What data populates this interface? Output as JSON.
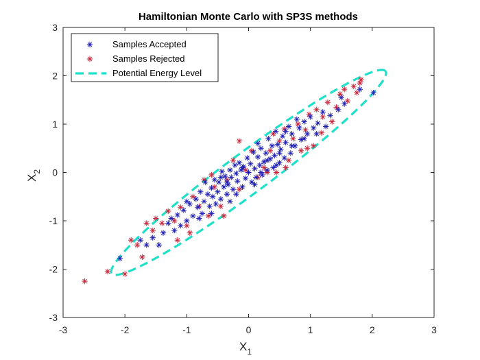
{
  "chart_data": {
    "type": "scatter",
    "title": "Hamiltonian Monte Carlo with SP3S methods",
    "xlabel": "X",
    "xlabel_sub": "1",
    "ylabel": "X",
    "ylabel_sub": "2",
    "xlim": [
      -3,
      3
    ],
    "ylim": [
      -3,
      3
    ],
    "xticks": [
      -3,
      -2,
      -1,
      0,
      1,
      2,
      3
    ],
    "yticks": [
      -3,
      -2,
      -1,
      0,
      1,
      2,
      3
    ],
    "grid": false,
    "legend_position": "top-left",
    "series": [
      {
        "name": "Samples Accepted",
        "marker": "asterisk",
        "color": "#1f1fb4",
        "points": [
          [
            2.02,
            1.65
          ],
          [
            1.8,
            1.72
          ],
          [
            1.55,
            1.42
          ],
          [
            1.5,
            1.55
          ],
          [
            1.45,
            1.3
          ],
          [
            1.32,
            1.18
          ],
          [
            1.25,
            0.95
          ],
          [
            1.2,
            1.25
          ],
          [
            1.12,
            1.02
          ],
          [
            1.05,
            0.92
          ],
          [
            1.0,
            1.15
          ],
          [
            0.95,
            0.8
          ],
          [
            0.9,
            1.05
          ],
          [
            0.85,
            0.68
          ],
          [
            0.82,
            0.92
          ],
          [
            0.78,
            1.1
          ],
          [
            0.75,
            0.55
          ],
          [
            0.7,
            0.8
          ],
          [
            0.68,
            0.4
          ],
          [
            0.65,
            0.95
          ],
          [
            0.6,
            0.62
          ],
          [
            0.58,
            0.3
          ],
          [
            0.55,
            0.75
          ],
          [
            0.52,
            0.48
          ],
          [
            0.5,
            0.2
          ],
          [
            0.47,
            0.58
          ],
          [
            0.44,
            0.85
          ],
          [
            0.42,
            0.35
          ],
          [
            0.4,
            0.1
          ],
          [
            0.38,
            0.55
          ],
          [
            0.35,
            0.28
          ],
          [
            0.32,
            0.7
          ],
          [
            0.3,
            0.05
          ],
          [
            0.28,
            0.4
          ],
          [
            0.25,
            0.22
          ],
          [
            0.22,
            -0.05
          ],
          [
            0.2,
            0.5
          ],
          [
            0.18,
            0.15
          ],
          [
            0.15,
            0.32
          ],
          [
            0.12,
            -0.1
          ],
          [
            0.1,
            0.08
          ],
          [
            0.08,
            0.42
          ],
          [
            0.05,
            -0.2
          ],
          [
            0.03,
            0.18
          ],
          [
            0.0,
            0.0
          ],
          [
            -0.02,
            0.3
          ],
          [
            -0.05,
            -0.12
          ],
          [
            -0.08,
            0.12
          ],
          [
            -0.1,
            -0.3
          ],
          [
            -0.12,
            0.05
          ],
          [
            -0.15,
            0.2
          ],
          [
            -0.18,
            -0.18
          ],
          [
            -0.2,
            -0.02
          ],
          [
            -0.22,
            0.15
          ],
          [
            -0.25,
            -0.35
          ],
          [
            -0.28,
            -0.1
          ],
          [
            -0.3,
            0.05
          ],
          [
            -0.33,
            -0.25
          ],
          [
            -0.35,
            -0.45
          ],
          [
            -0.38,
            -0.08
          ],
          [
            -0.4,
            -0.3
          ],
          [
            -0.43,
            0.02
          ],
          [
            -0.45,
            -0.55
          ],
          [
            -0.48,
            -0.2
          ],
          [
            -0.5,
            -0.4
          ],
          [
            -0.53,
            -0.65
          ],
          [
            -0.55,
            -0.15
          ],
          [
            -0.58,
            -0.5
          ],
          [
            -0.6,
            -0.32
          ],
          [
            -0.63,
            -0.7
          ],
          [
            -0.66,
            -0.45
          ],
          [
            -0.7,
            -0.2
          ],
          [
            -0.72,
            -0.6
          ],
          [
            -0.75,
            -0.85
          ],
          [
            -0.78,
            -0.4
          ],
          [
            -0.82,
            -0.72
          ],
          [
            -0.85,
            -0.55
          ],
          [
            -0.9,
            -0.9
          ],
          [
            -0.95,
            -0.65
          ],
          [
            -1.0,
            -1.0
          ],
          [
            -1.05,
            -0.78
          ],
          [
            -1.1,
            -1.1
          ],
          [
            -1.15,
            -0.88
          ],
          [
            -1.2,
            -1.2
          ],
          [
            -1.25,
            -0.95
          ],
          [
            -1.3,
            -1.05
          ],
          [
            -1.38,
            -1.25
          ],
          [
            -1.45,
            -1.5
          ],
          [
            -1.55,
            -1.35
          ],
          [
            -1.65,
            -1.5
          ],
          [
            -1.75,
            -1.4
          ],
          [
            -2.08,
            -1.78
          ],
          [
            0.2,
            0.0
          ],
          [
            0.1,
            -0.25
          ],
          [
            -0.1,
            0.1
          ],
          [
            -0.3,
            -0.6
          ],
          [
            0.3,
            0.25
          ],
          [
            0.45,
            0.15
          ],
          [
            -0.2,
            -0.45
          ],
          [
            0.6,
            0.85
          ],
          [
            -0.6,
            -0.85
          ],
          [
            0.7,
            0.55
          ],
          [
            -0.45,
            -0.1
          ],
          [
            0.15,
            0.6
          ],
          [
            -0.35,
            -0.2
          ],
          [
            0.9,
            0.7
          ],
          [
            -0.8,
            -0.95
          ],
          [
            1.1,
            0.8
          ],
          [
            -1.0,
            -0.6
          ],
          [
            0.5,
            0.4
          ]
        ]
      },
      {
        "name": "Samples Rejected",
        "marker": "asterisk",
        "color": "#c8283c",
        "points": [
          [
            1.82,
            1.92
          ],
          [
            1.8,
            1.85
          ],
          [
            1.75,
            1.65
          ],
          [
            1.7,
            1.78
          ],
          [
            1.6,
            1.48
          ],
          [
            1.48,
            1.62
          ],
          [
            1.42,
            1.35
          ],
          [
            1.35,
            1.05
          ],
          [
            1.28,
            1.45
          ],
          [
            1.18,
            0.82
          ],
          [
            1.1,
            1.3
          ],
          [
            1.05,
            0.55
          ],
          [
            0.98,
            1.2
          ],
          [
            0.92,
            0.88
          ],
          [
            0.85,
            0.45
          ],
          [
            0.8,
            1.0
          ],
          [
            0.72,
            0.7
          ],
          [
            0.65,
            0.25
          ],
          [
            0.58,
            0.9
          ],
          [
            0.5,
            0.65
          ],
          [
            0.45,
            0.0
          ],
          [
            0.35,
            0.45
          ],
          [
            0.25,
            0.1
          ],
          [
            0.15,
            -0.1
          ],
          [
            0.05,
            0.45
          ],
          [
            -0.05,
            0.05
          ],
          [
            -0.15,
            -0.35
          ],
          [
            -0.15,
            0.65
          ],
          [
            -0.25,
            0.25
          ],
          [
            -0.35,
            -0.15
          ],
          [
            -0.45,
            -0.7
          ],
          [
            -0.55,
            -0.3
          ],
          [
            -0.65,
            -0.9
          ],
          [
            -0.72,
            -0.15
          ],
          [
            -0.8,
            -0.7
          ],
          [
            -0.9,
            -0.5
          ],
          [
            -1.0,
            -1.1
          ],
          [
            -1.1,
            -0.72
          ],
          [
            -1.2,
            -1.0
          ],
          [
            -1.3,
            -0.8
          ],
          [
            -1.4,
            -1.05
          ],
          [
            -1.5,
            -0.95
          ],
          [
            -1.55,
            -1.2
          ],
          [
            -1.65,
            -1.05
          ],
          [
            -1.72,
            -1.75
          ],
          [
            -1.8,
            -1.5
          ],
          [
            -1.9,
            -1.4
          ],
          [
            -2.0,
            -2.1
          ],
          [
            -2.28,
            -2.05
          ],
          [
            -2.65,
            -2.25
          ],
          [
            0.3,
            0.0
          ],
          [
            0.6,
            0.1
          ],
          [
            -0.6,
            -0.05
          ],
          [
            1.2,
            1.15
          ],
          [
            0.95,
            0.5
          ],
          [
            -0.95,
            -1.25
          ],
          [
            0.4,
            0.8
          ],
          [
            -0.4,
            -0.9
          ],
          [
            1.55,
            1.72
          ],
          [
            -1.15,
            -1.4
          ]
        ]
      },
      {
        "name": "Potential Energy Level",
        "style": "dashed-line",
        "color": "#1fe0c8"
      }
    ]
  },
  "legend": {
    "items": [
      {
        "label": "Samples Accepted",
        "color": "#1f1fb4"
      },
      {
        "label": "Samples Rejected",
        "color": "#c8283c"
      },
      {
        "label": "Potential Energy Level",
        "color": "#1fe0c8"
      }
    ]
  }
}
